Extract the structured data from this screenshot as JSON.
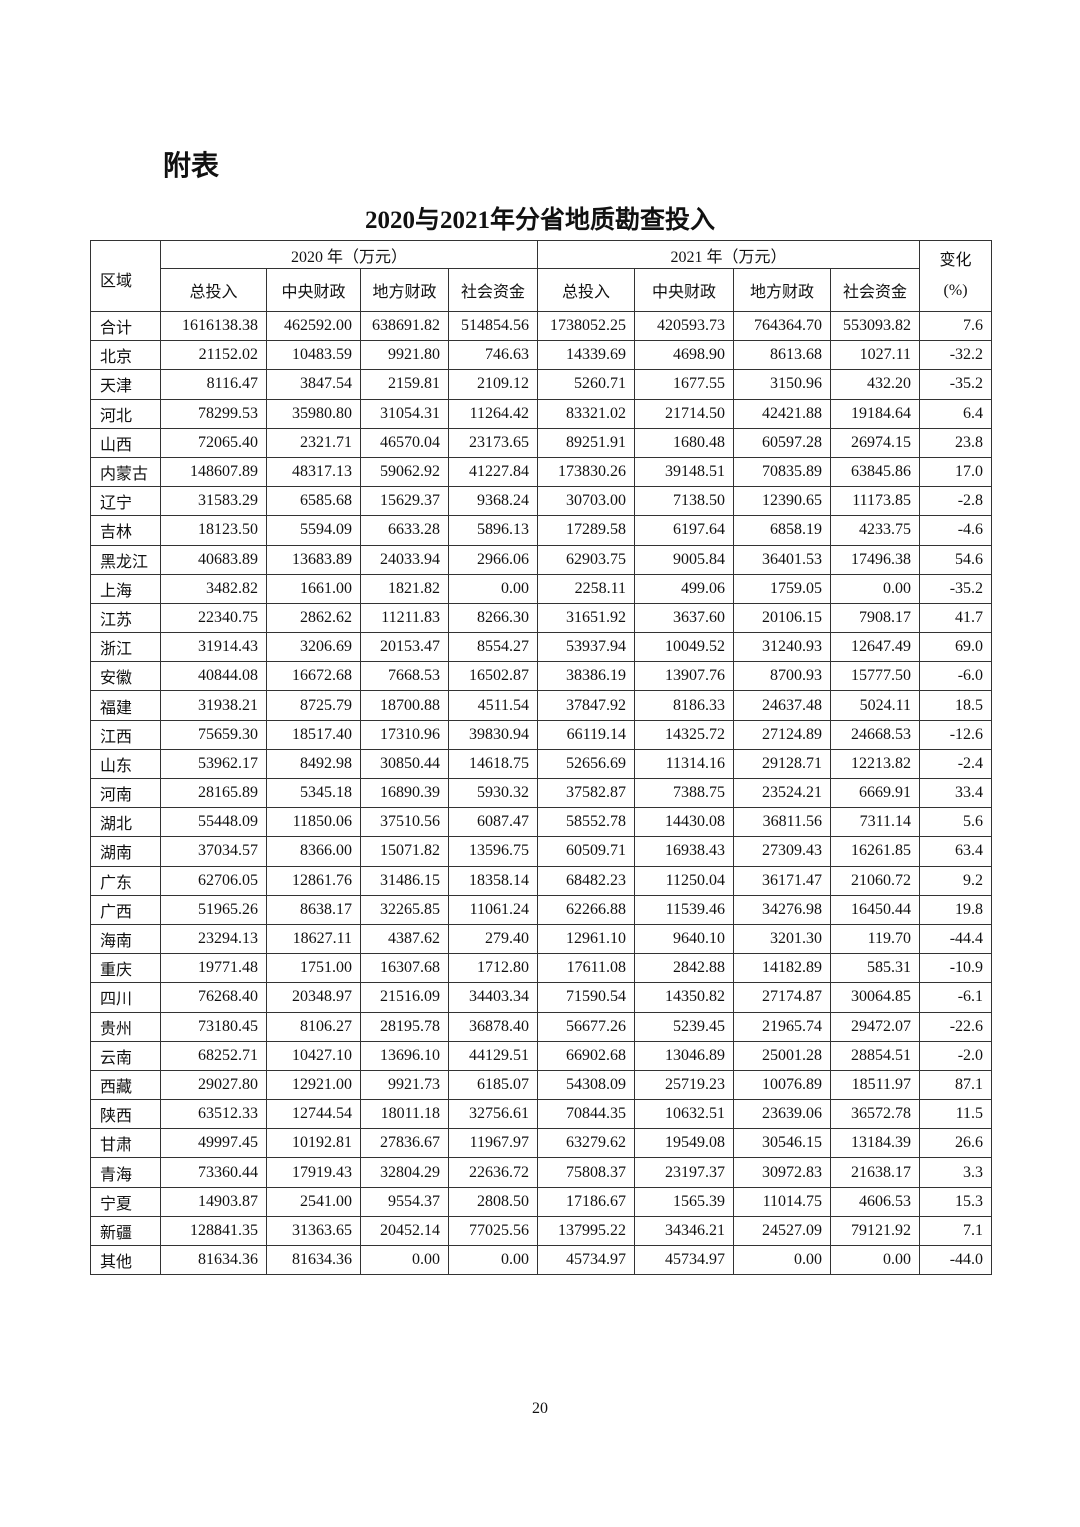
{
  "heading": "附表",
  "table_title": "2020与2021年分省地质勘查投入",
  "table": {
    "region_header": "区域",
    "year_2020_header": "2020 年（万元）",
    "year_2021_header": "2021 年（万元）",
    "change_header_line1": "变化",
    "change_header_line2": "(%)",
    "sub_headers": [
      "总投入",
      "中央财政",
      "地方财政",
      "社会资金",
      "总投入",
      "中央财政",
      "地方财政",
      "社会资金"
    ],
    "rows": [
      [
        "合计",
        "1616138.38",
        "462592.00",
        "638691.82",
        "514854.56",
        "1738052.25",
        "420593.73",
        "764364.70",
        "553093.82",
        "7.6"
      ],
      [
        "北京",
        "21152.02",
        "10483.59",
        "9921.80",
        "746.63",
        "14339.69",
        "4698.90",
        "8613.68",
        "1027.11",
        "-32.2"
      ],
      [
        "天津",
        "8116.47",
        "3847.54",
        "2159.81",
        "2109.12",
        "5260.71",
        "1677.55",
        "3150.96",
        "432.20",
        "-35.2"
      ],
      [
        "河北",
        "78299.53",
        "35980.80",
        "31054.31",
        "11264.42",
        "83321.02",
        "21714.50",
        "42421.88",
        "19184.64",
        "6.4"
      ],
      [
        "山西",
        "72065.40",
        "2321.71",
        "46570.04",
        "23173.65",
        "89251.91",
        "1680.48",
        "60597.28",
        "26974.15",
        "23.8"
      ],
      [
        "内蒙古",
        "148607.89",
        "48317.13",
        "59062.92",
        "41227.84",
        "173830.26",
        "39148.51",
        "70835.89",
        "63845.86",
        "17.0"
      ],
      [
        "辽宁",
        "31583.29",
        "6585.68",
        "15629.37",
        "9368.24",
        "30703.00",
        "7138.50",
        "12390.65",
        "11173.85",
        "-2.8"
      ],
      [
        "吉林",
        "18123.50",
        "5594.09",
        "6633.28",
        "5896.13",
        "17289.58",
        "6197.64",
        "6858.19",
        "4233.75",
        "-4.6"
      ],
      [
        "黑龙江",
        "40683.89",
        "13683.89",
        "24033.94",
        "2966.06",
        "62903.75",
        "9005.84",
        "36401.53",
        "17496.38",
        "54.6"
      ],
      [
        "上海",
        "3482.82",
        "1661.00",
        "1821.82",
        "0.00",
        "2258.11",
        "499.06",
        "1759.05",
        "0.00",
        "-35.2"
      ],
      [
        "江苏",
        "22340.75",
        "2862.62",
        "11211.83",
        "8266.30",
        "31651.92",
        "3637.60",
        "20106.15",
        "7908.17",
        "41.7"
      ],
      [
        "浙江",
        "31914.43",
        "3206.69",
        "20153.47",
        "8554.27",
        "53937.94",
        "10049.52",
        "31240.93",
        "12647.49",
        "69.0"
      ],
      [
        "安徽",
        "40844.08",
        "16672.68",
        "7668.53",
        "16502.87",
        "38386.19",
        "13907.76",
        "8700.93",
        "15777.50",
        "-6.0"
      ],
      [
        "福建",
        "31938.21",
        "8725.79",
        "18700.88",
        "4511.54",
        "37847.92",
        "8186.33",
        "24637.48",
        "5024.11",
        "18.5"
      ],
      [
        "江西",
        "75659.30",
        "18517.40",
        "17310.96",
        "39830.94",
        "66119.14",
        "14325.72",
        "27124.89",
        "24668.53",
        "-12.6"
      ],
      [
        "山东",
        "53962.17",
        "8492.98",
        "30850.44",
        "14618.75",
        "52656.69",
        "11314.16",
        "29128.71",
        "12213.82",
        "-2.4"
      ],
      [
        "河南",
        "28165.89",
        "5345.18",
        "16890.39",
        "5930.32",
        "37582.87",
        "7388.75",
        "23524.21",
        "6669.91",
        "33.4"
      ],
      [
        "湖北",
        "55448.09",
        "11850.06",
        "37510.56",
        "6087.47",
        "58552.78",
        "14430.08",
        "36811.56",
        "7311.14",
        "5.6"
      ],
      [
        "湖南",
        "37034.57",
        "8366.00",
        "15071.82",
        "13596.75",
        "60509.71",
        "16938.43",
        "27309.43",
        "16261.85",
        "63.4"
      ],
      [
        "广东",
        "62706.05",
        "12861.76",
        "31486.15",
        "18358.14",
        "68482.23",
        "11250.04",
        "36171.47",
        "21060.72",
        "9.2"
      ],
      [
        "广西",
        "51965.26",
        "8638.17",
        "32265.85",
        "11061.24",
        "62266.88",
        "11539.46",
        "34276.98",
        "16450.44",
        "19.8"
      ],
      [
        "海南",
        "23294.13",
        "18627.11",
        "4387.62",
        "279.40",
        "12961.10",
        "9640.10",
        "3201.30",
        "119.70",
        "-44.4"
      ],
      [
        "重庆",
        "19771.48",
        "1751.00",
        "16307.68",
        "1712.80",
        "17611.08",
        "2842.88",
        "14182.89",
        "585.31",
        "-10.9"
      ],
      [
        "四川",
        "76268.40",
        "20348.97",
        "21516.09",
        "34403.34",
        "71590.54",
        "14350.82",
        "27174.87",
        "30064.85",
        "-6.1"
      ],
      [
        "贵州",
        "73180.45",
        "8106.27",
        "28195.78",
        "36878.40",
        "56677.26",
        "5239.45",
        "21965.74",
        "29472.07",
        "-22.6"
      ],
      [
        "云南",
        "68252.71",
        "10427.10",
        "13696.10",
        "44129.51",
        "66902.68",
        "13046.89",
        "25001.28",
        "28854.51",
        "-2.0"
      ],
      [
        "西藏",
        "29027.80",
        "12921.00",
        "9921.73",
        "6185.07",
        "54308.09",
        "25719.23",
        "10076.89",
        "18511.97",
        "87.1"
      ],
      [
        "陕西",
        "63512.33",
        "12744.54",
        "18011.18",
        "32756.61",
        "70844.35",
        "10632.51",
        "23639.06",
        "36572.78",
        "11.5"
      ],
      [
        "甘肃",
        "49997.45",
        "10192.81",
        "27836.67",
        "11967.97",
        "63279.62",
        "19549.08",
        "30546.15",
        "13184.39",
        "26.6"
      ],
      [
        "青海",
        "73360.44",
        "17919.43",
        "32804.29",
        "22636.72",
        "75808.37",
        "23197.37",
        "30972.83",
        "21638.17",
        "3.3"
      ],
      [
        "宁夏",
        "14903.87",
        "2541.00",
        "9554.37",
        "2808.50",
        "17186.67",
        "1565.39",
        "11014.75",
        "4606.53",
        "15.3"
      ],
      [
        "新疆",
        "128841.35",
        "31363.65",
        "20452.14",
        "77025.56",
        "137995.22",
        "34346.21",
        "24527.09",
        "79121.92",
        "7.1"
      ],
      [
        "其他",
        "81634.36",
        "81634.36",
        "0.00",
        "0.00",
        "45734.97",
        "45734.97",
        "0.00",
        "0.00",
        "-44.0"
      ]
    ]
  },
  "page_number": "20"
}
